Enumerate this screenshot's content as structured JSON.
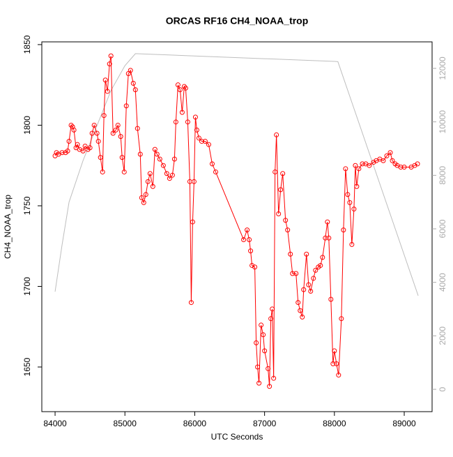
{
  "chart_data": {
    "type": "line",
    "title": "ORCAS RF16 CH4_NOAA_trop",
    "xlabel": "UTC Seconds",
    "ylabel": "CH4_NOAA_trop",
    "xlim": [
      83810,
      89399
    ],
    "xticks": [
      84000,
      85000,
      86000,
      87000,
      88000,
      89000
    ],
    "ylim": [
      1622.3,
      1851.7
    ],
    "yticks": [
      1650,
      1700,
      1750,
      1800,
      1850
    ],
    "y2lim": [
      -835,
      12991
    ],
    "y2ticks": [
      0,
      2000,
      4000,
      6000,
      8000,
      10000,
      12000
    ],
    "series": [
      {
        "color": "#ff0000",
        "markers": true,
        "x": [
          84000,
          84020,
          84050,
          84100,
          84150,
          84180,
          84200,
          84230,
          84250,
          84270,
          84300,
          84320,
          84350,
          84400,
          84430,
          84470,
          84500,
          84530,
          84560,
          84600,
          84620,
          84650,
          84680,
          84700,
          84720,
          84750,
          84780,
          84800,
          84830,
          84870,
          84900,
          84940,
          84960,
          84990,
          85020,
          85050,
          85080,
          85120,
          85150,
          85180,
          85220,
          85240,
          85270,
          85300,
          85330,
          85360,
          85400,
          85430,
          85460,
          85500,
          85550,
          85600,
          85640,
          85680,
          85710,
          85730,
          85760,
          85790,
          85820,
          85850,
          85870,
          85900,
          85930,
          85950,
          85970,
          85990,
          86010,
          86030,
          86060,
          86100,
          86150,
          86200,
          86250,
          86300,
          86700,
          86750,
          86780,
          86800,
          86820,
          86860,
          86880,
          86900,
          86920,
          86950,
          86980,
          87000,
          87050,
          87070,
          87090,
          87110,
          87130,
          87150,
          87170,
          87200,
          87230,
          87260,
          87300,
          87330,
          87370,
          87400,
          87450,
          87480,
          87510,
          87540,
          87560,
          87600,
          87630,
          87660,
          87700,
          87730,
          87770,
          87800,
          87830,
          87870,
          87900,
          87920,
          87950,
          87980,
          88000,
          88030,
          88060,
          88100,
          88130,
          88160,
          88190,
          88220,
          88250,
          88280,
          88300,
          88320,
          88350,
          88400,
          88450,
          88500,
          88560,
          88600,
          88650,
          88700,
          88750,
          88800,
          88830,
          88870,
          88900,
          88950,
          89000,
          89100,
          89150,
          89190
        ],
        "values": [
          1781,
          1783,
          1782,
          1783,
          1783,
          1784,
          1790,
          1800,
          1799,
          1797,
          1786,
          1788,
          1785,
          1784,
          1787,
          1785,
          1786,
          1795,
          1800,
          1795,
          1790,
          1780,
          1771,
          1806,
          1828,
          1821,
          1838,
          1843,
          1795,
          1797,
          1800,
          1793,
          1780,
          1771,
          1812,
          1832,
          1834,
          1826,
          1822,
          1798,
          1782,
          1755,
          1752,
          1757,
          1765,
          1770,
          1762,
          1785,
          1782,
          1779,
          1775,
          1770,
          1767,
          1769,
          1779,
          1802,
          1825,
          1822,
          1808,
          1824,
          1823,
          1802,
          1765,
          1690,
          1740,
          1765,
          1805,
          1797,
          1792,
          1790,
          1790,
          1788,
          1776,
          1771,
          1729,
          1735,
          1729,
          1722,
          1713,
          1712,
          1665,
          1650,
          1640,
          1676,
          1670,
          1660,
          1649,
          1638,
          1680,
          1686,
          1643,
          1771,
          1794,
          1745,
          1760,
          1770,
          1741,
          1735,
          1720,
          1708,
          1708,
          1690,
          1685,
          1681,
          1698,
          1720,
          1701,
          1697,
          1705,
          1710,
          1712,
          1713,
          1718,
          1730,
          1740,
          1730,
          1692,
          1652,
          1660,
          1652,
          1645,
          1680,
          1735,
          1773,
          1757,
          1752,
          1726,
          1748,
          1775,
          1762,
          1773,
          1776,
          1776,
          1775,
          1777,
          1778,
          1779,
          1778,
          1781,
          1783,
          1778,
          1776,
          1775,
          1774,
          1774,
          1774,
          1775,
          1776
        ]
      },
      {
        "color": "#bebebe",
        "axis": "y2",
        "markers": false,
        "x": [
          84000,
          84100,
          84200,
          84400,
          84600,
          84800,
          85000,
          85150,
          88000,
          88050,
          89200
        ],
        "values": [
          3650,
          5400,
          7000,
          8550,
          9860,
          11170,
          12100,
          12550,
          12260,
          12250,
          3500
        ]
      }
    ]
  }
}
